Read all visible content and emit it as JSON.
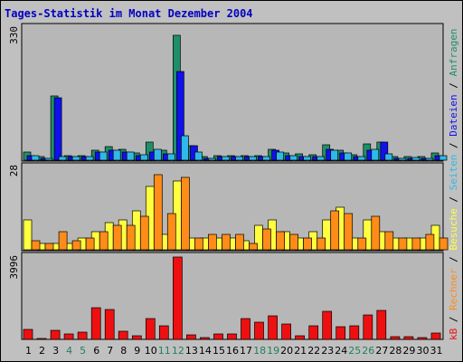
{
  "chart_data": {
    "type": "bar",
    "title": "Tages-Statistik im Monat Dezember 2004",
    "categories": [
      "1",
      "2",
      "3",
      "4",
      "5",
      "6",
      "7",
      "8",
      "9",
      "10",
      "11",
      "12",
      "13",
      "14",
      "15",
      "16",
      "17",
      "18",
      "19",
      "20",
      "21",
      "22",
      "23",
      "24",
      "25",
      "26",
      "27",
      "28",
      "29",
      "30",
      "31"
    ],
    "weekend_days": [
      "4",
      "5",
      "11",
      "12",
      "18",
      "19",
      "25",
      "26"
    ],
    "colors": {
      "background": "#c0c0c0",
      "plot": "#b7b7b7",
      "title": "#0000c0",
      "weekday_label": "#000000",
      "weekend_label": "#208060",
      "grid": "#9a9a9a"
    },
    "panels": [
      {
        "id": "requests",
        "ymax_label": "330",
        "ylim": [
          0,
          330
        ],
        "series": [
          {
            "name": "Anfragen",
            "color": "#1f8f6a",
            "values": [
              20,
              8,
              160,
              12,
              12,
              24,
              34,
              28,
              18,
              46,
              25,
              310,
              36,
              8,
              12,
              12,
              12,
              12,
              28,
              18,
              16,
              14,
              38,
              24,
              14,
              40,
              46,
              8,
              10,
              8,
              18
            ]
          },
          {
            "name": "Dateien",
            "color": "#1010f0",
            "values": [
              12,
              5,
              155,
              8,
              8,
              20,
              25,
              20,
              12,
              20,
              15,
              220,
              36,
              5,
              8,
              8,
              8,
              8,
              25,
              12,
              10,
              10,
              28,
              18,
              10,
              25,
              46,
              5,
              5,
              5,
              12
            ]
          },
          {
            "name": "Seiten",
            "color": "#30b8e8",
            "values": [
              12,
              5,
              8,
              8,
              8,
              20,
              24,
              20,
              14,
              26,
              15,
              60,
              20,
              5,
              8,
              8,
              8,
              8,
              20,
              12,
              10,
              10,
              24,
              18,
              10,
              28,
              16,
              5,
              6,
              5,
              12
            ]
          }
        ]
      },
      {
        "id": "visits",
        "ymax_label": "28",
        "ylim": [
          0,
          28
        ],
        "series": [
          {
            "name": "Besuche",
            "color": "#ffff40",
            "values": [
              10,
              2,
              2,
              2,
              4,
              6,
              9,
              10,
              13,
              21,
              5,
              23,
              4,
              4,
              4,
              4,
              3,
              8,
              10,
              6,
              4,
              6,
              10,
              14,
              4,
              10,
              6,
              4,
              4,
              4,
              8
            ]
          },
          {
            "name": "Rechner",
            "color": "#ff8c18",
            "values": [
              3,
              2,
              6,
              3,
              4,
              6,
              8,
              8,
              11,
              25,
              12,
              24,
              4,
              5,
              5,
              5,
              2,
              7,
              6,
              5,
              4,
              4,
              13,
              12,
              4,
              11,
              6,
              4,
              4,
              5,
              4
            ]
          }
        ]
      },
      {
        "id": "traffic",
        "ymax_label": "3996",
        "ylim": [
          0,
          3996
        ],
        "series": [
          {
            "name": "kB",
            "color": "#ee1010",
            "values": [
              460,
              60,
              420,
              250,
              330,
              1520,
              1420,
              410,
              190,
              1000,
              630,
              3950,
              220,
              90,
              250,
              270,
              1010,
              830,
              1150,
              720,
              190,
              630,
              1360,
              610,
              640,
              1160,
              1380,
              150,
              140,
              80,
              310
            ]
          }
        ]
      }
    ],
    "legend": [
      {
        "text": "kB",
        "color": "#ee1010"
      },
      {
        "text": " / ",
        "color": "#000000"
      },
      {
        "text": "Rechner",
        "color": "#ff8c18"
      },
      {
        "text": " / ",
        "color": "#000000"
      },
      {
        "text": "Besuche",
        "color": "#ffff40"
      },
      {
        "text": " / ",
        "color": "#000000"
      },
      {
        "text": "Seiten",
        "color": "#30b8e8"
      },
      {
        "text": " / ",
        "color": "#000000"
      },
      {
        "text": "Dateien",
        "color": "#1010f0"
      },
      {
        "text": " / ",
        "color": "#000000"
      },
      {
        "text": "Anfragen",
        "color": "#1f8f6a"
      }
    ]
  }
}
